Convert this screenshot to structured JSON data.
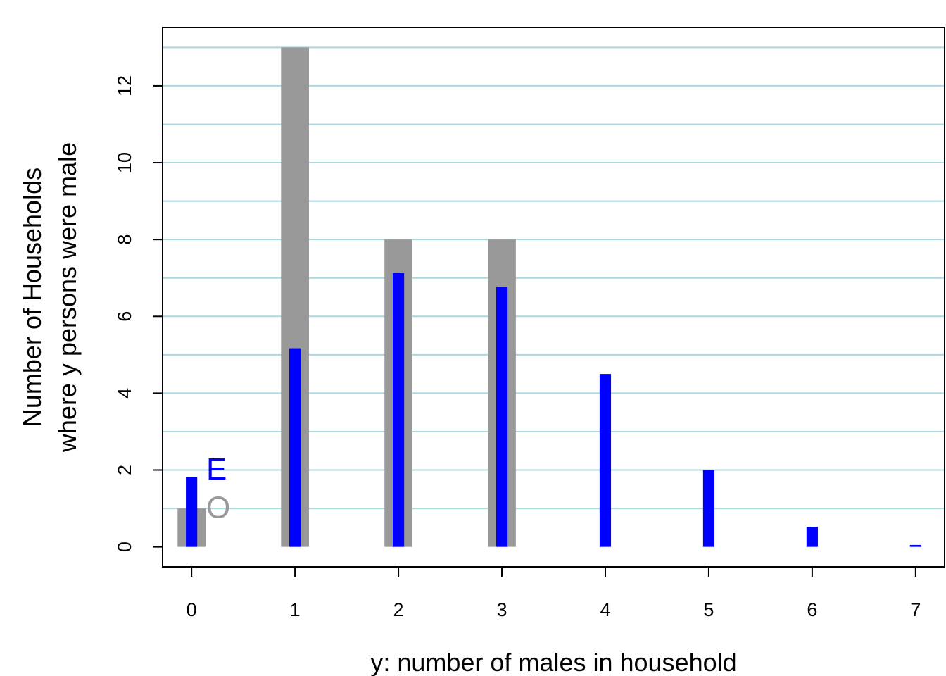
{
  "chart_data": {
    "type": "bar",
    "xlabel": "y: number of males in household",
    "ylabel_line1": "Number of Households",
    "ylabel_line2": "where y persons were male",
    "categories": [
      "0",
      "1",
      "2",
      "3",
      "4",
      "5",
      "6",
      "7"
    ],
    "x": [
      0,
      1,
      2,
      3,
      4,
      5,
      6,
      7
    ],
    "xlim": [
      -0.28,
      7.28
    ],
    "ylim": [
      -0.52,
      13.52
    ],
    "yticks": [
      0,
      2,
      4,
      6,
      8,
      10,
      12
    ],
    "ytick_labels": [
      "0",
      "2",
      "4",
      "6",
      "8",
      "10",
      "12"
    ],
    "gridlines": [
      1,
      2,
      3,
      4,
      5,
      6,
      7,
      8,
      9,
      10,
      11,
      12,
      13
    ],
    "grid_color": "#a8d8e0",
    "series": [
      {
        "label": "O",
        "color": "#999999",
        "values": [
          1,
          13,
          8,
          8,
          0,
          0,
          0,
          0
        ]
      },
      {
        "label": "E",
        "color": "#0000ff",
        "values": [
          1.82,
          5.17,
          7.13,
          6.77,
          4.5,
          2.0,
          0.52,
          0.05
        ]
      }
    ],
    "legend_placement": "bottom-left"
  }
}
